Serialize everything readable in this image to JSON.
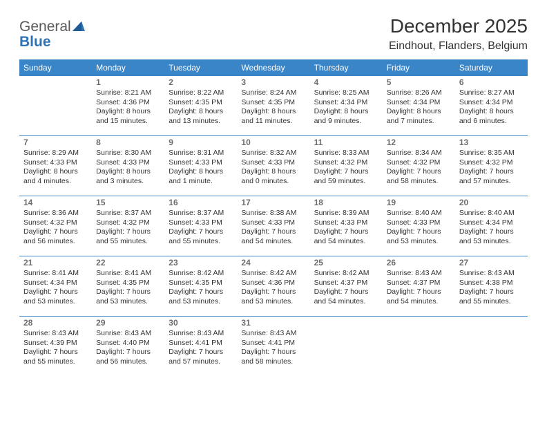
{
  "brand": {
    "part1": "General",
    "part2": "Blue"
  },
  "title": "December 2025",
  "location": "Eindhout, Flanders, Belgium",
  "colors": {
    "header_bg": "#3a85c7",
    "header_text": "#ffffff",
    "brand_gray": "#5a5a5a",
    "brand_blue": "#2f73b5",
    "body_text": "#333333",
    "daynum": "#6d6d6d",
    "row_divider": "#3a85c7",
    "page_bg": "#ffffff"
  },
  "days_of_week": [
    "Sunday",
    "Monday",
    "Tuesday",
    "Wednesday",
    "Thursday",
    "Friday",
    "Saturday"
  ],
  "weeks": [
    [
      null,
      {
        "n": "1",
        "sr": "Sunrise: 8:21 AM",
        "ss": "Sunset: 4:36 PM",
        "dl": "Daylight: 8 hours and 15 minutes."
      },
      {
        "n": "2",
        "sr": "Sunrise: 8:22 AM",
        "ss": "Sunset: 4:35 PM",
        "dl": "Daylight: 8 hours and 13 minutes."
      },
      {
        "n": "3",
        "sr": "Sunrise: 8:24 AM",
        "ss": "Sunset: 4:35 PM",
        "dl": "Daylight: 8 hours and 11 minutes."
      },
      {
        "n": "4",
        "sr": "Sunrise: 8:25 AM",
        "ss": "Sunset: 4:34 PM",
        "dl": "Daylight: 8 hours and 9 minutes."
      },
      {
        "n": "5",
        "sr": "Sunrise: 8:26 AM",
        "ss": "Sunset: 4:34 PM",
        "dl": "Daylight: 8 hours and 7 minutes."
      },
      {
        "n": "6",
        "sr": "Sunrise: 8:27 AM",
        "ss": "Sunset: 4:34 PM",
        "dl": "Daylight: 8 hours and 6 minutes."
      }
    ],
    [
      {
        "n": "7",
        "sr": "Sunrise: 8:29 AM",
        "ss": "Sunset: 4:33 PM",
        "dl": "Daylight: 8 hours and 4 minutes."
      },
      {
        "n": "8",
        "sr": "Sunrise: 8:30 AM",
        "ss": "Sunset: 4:33 PM",
        "dl": "Daylight: 8 hours and 3 minutes."
      },
      {
        "n": "9",
        "sr": "Sunrise: 8:31 AM",
        "ss": "Sunset: 4:33 PM",
        "dl": "Daylight: 8 hours and 1 minute."
      },
      {
        "n": "10",
        "sr": "Sunrise: 8:32 AM",
        "ss": "Sunset: 4:33 PM",
        "dl": "Daylight: 8 hours and 0 minutes."
      },
      {
        "n": "11",
        "sr": "Sunrise: 8:33 AM",
        "ss": "Sunset: 4:32 PM",
        "dl": "Daylight: 7 hours and 59 minutes."
      },
      {
        "n": "12",
        "sr": "Sunrise: 8:34 AM",
        "ss": "Sunset: 4:32 PM",
        "dl": "Daylight: 7 hours and 58 minutes."
      },
      {
        "n": "13",
        "sr": "Sunrise: 8:35 AM",
        "ss": "Sunset: 4:32 PM",
        "dl": "Daylight: 7 hours and 57 minutes."
      }
    ],
    [
      {
        "n": "14",
        "sr": "Sunrise: 8:36 AM",
        "ss": "Sunset: 4:32 PM",
        "dl": "Daylight: 7 hours and 56 minutes."
      },
      {
        "n": "15",
        "sr": "Sunrise: 8:37 AM",
        "ss": "Sunset: 4:32 PM",
        "dl": "Daylight: 7 hours and 55 minutes."
      },
      {
        "n": "16",
        "sr": "Sunrise: 8:37 AM",
        "ss": "Sunset: 4:33 PM",
        "dl": "Daylight: 7 hours and 55 minutes."
      },
      {
        "n": "17",
        "sr": "Sunrise: 8:38 AM",
        "ss": "Sunset: 4:33 PM",
        "dl": "Daylight: 7 hours and 54 minutes."
      },
      {
        "n": "18",
        "sr": "Sunrise: 8:39 AM",
        "ss": "Sunset: 4:33 PM",
        "dl": "Daylight: 7 hours and 54 minutes."
      },
      {
        "n": "19",
        "sr": "Sunrise: 8:40 AM",
        "ss": "Sunset: 4:33 PM",
        "dl": "Daylight: 7 hours and 53 minutes."
      },
      {
        "n": "20",
        "sr": "Sunrise: 8:40 AM",
        "ss": "Sunset: 4:34 PM",
        "dl": "Daylight: 7 hours and 53 minutes."
      }
    ],
    [
      {
        "n": "21",
        "sr": "Sunrise: 8:41 AM",
        "ss": "Sunset: 4:34 PM",
        "dl": "Daylight: 7 hours and 53 minutes."
      },
      {
        "n": "22",
        "sr": "Sunrise: 8:41 AM",
        "ss": "Sunset: 4:35 PM",
        "dl": "Daylight: 7 hours and 53 minutes."
      },
      {
        "n": "23",
        "sr": "Sunrise: 8:42 AM",
        "ss": "Sunset: 4:35 PM",
        "dl": "Daylight: 7 hours and 53 minutes."
      },
      {
        "n": "24",
        "sr": "Sunrise: 8:42 AM",
        "ss": "Sunset: 4:36 PM",
        "dl": "Daylight: 7 hours and 53 minutes."
      },
      {
        "n": "25",
        "sr": "Sunrise: 8:42 AM",
        "ss": "Sunset: 4:37 PM",
        "dl": "Daylight: 7 hours and 54 minutes."
      },
      {
        "n": "26",
        "sr": "Sunrise: 8:43 AM",
        "ss": "Sunset: 4:37 PM",
        "dl": "Daylight: 7 hours and 54 minutes."
      },
      {
        "n": "27",
        "sr": "Sunrise: 8:43 AM",
        "ss": "Sunset: 4:38 PM",
        "dl": "Daylight: 7 hours and 55 minutes."
      }
    ],
    [
      {
        "n": "28",
        "sr": "Sunrise: 8:43 AM",
        "ss": "Sunset: 4:39 PM",
        "dl": "Daylight: 7 hours and 55 minutes."
      },
      {
        "n": "29",
        "sr": "Sunrise: 8:43 AM",
        "ss": "Sunset: 4:40 PM",
        "dl": "Daylight: 7 hours and 56 minutes."
      },
      {
        "n": "30",
        "sr": "Sunrise: 8:43 AM",
        "ss": "Sunset: 4:41 PM",
        "dl": "Daylight: 7 hours and 57 minutes."
      },
      {
        "n": "31",
        "sr": "Sunrise: 8:43 AM",
        "ss": "Sunset: 4:41 PM",
        "dl": "Daylight: 7 hours and 58 minutes."
      },
      null,
      null,
      null
    ]
  ]
}
